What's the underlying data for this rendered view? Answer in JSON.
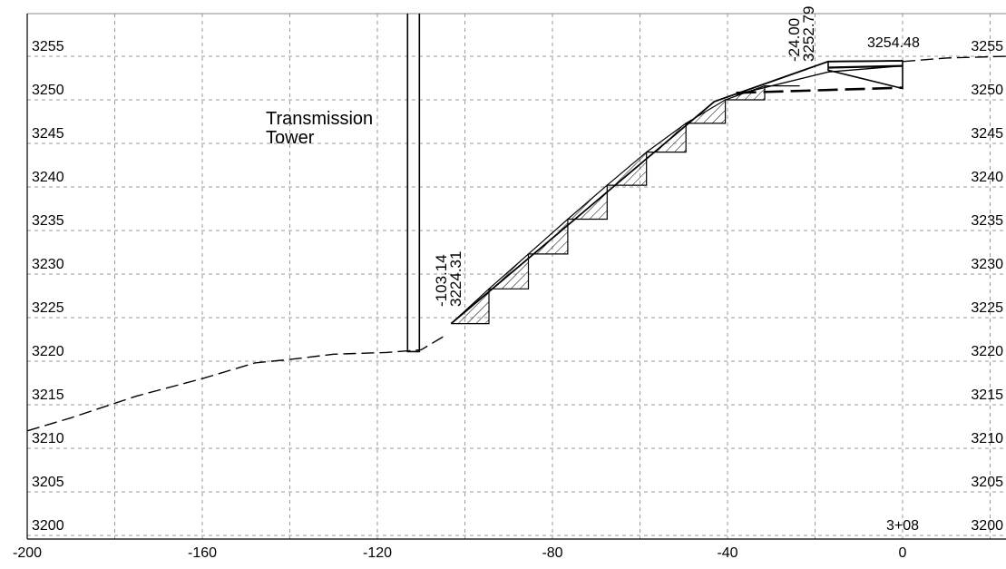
{
  "chart_data": {
    "type": "cross-section",
    "x_range": [
      -200,
      24
    ],
    "y_range": [
      3200,
      3257.5
    ],
    "x_ticks": [
      -200,
      -160,
      -120,
      -80,
      -40,
      0
    ],
    "x_tick_labels": [
      "-200",
      "-160",
      "-120",
      "-80",
      "-40",
      "0"
    ],
    "y_ticks": [
      3200,
      3205,
      3210,
      3215,
      3220,
      3225,
      3230,
      3235,
      3240,
      3245,
      3250,
      3255
    ],
    "y_tick_labels": [
      "3200",
      "3205",
      "3210",
      "3215",
      "3220",
      "3225",
      "3230",
      "3235",
      "3240",
      "3245",
      "3250",
      "3255"
    ],
    "x_grid_lines": [
      -180,
      -160,
      -140,
      -120,
      -100,
      -80,
      -60,
      -40,
      -20,
      0,
      20
    ],
    "grid": true,
    "station_label": "3+08",
    "tower_label": [
      "Transmission",
      "Tower"
    ],
    "annotations": [
      {
        "lines": [
          "-103.14",
          "3224.31"
        ],
        "x": -103.14,
        "y": 3224.31
      },
      {
        "lines": [
          "-24.00",
          "3252.79"
        ],
        "x": -24.0,
        "y": 3252.79
      },
      {
        "lines": [
          "3254.48"
        ],
        "x": 0,
        "y": 3254.48
      }
    ],
    "existing_ground": [
      [
        -200,
        3212.0
      ],
      [
        -190,
        3213.5
      ],
      [
        -175,
        3216.0
      ],
      [
        -160,
        3218.0
      ],
      [
        -148,
        3219.8
      ],
      [
        -140,
        3220.2
      ],
      [
        -130,
        3220.8
      ],
      [
        -118,
        3221.0
      ],
      [
        -110,
        3221.3
      ],
      [
        -105,
        3222.8
      ]
    ],
    "existing_ground_right": [
      [
        0,
        3254.4
      ],
      [
        10,
        3254.8
      ],
      [
        24,
        3255.0
      ]
    ],
    "tower": {
      "x_left": -113.1,
      "x_right": -110.4,
      "y_bottom": 3221.1
    },
    "fill_slope": [
      [
        -103.14,
        3224.31
      ],
      [
        -43.0,
        3249.8
      ],
      [
        -17.0,
        3254.4
      ],
      [
        0,
        3254.48
      ]
    ],
    "road_section": [
      [
        -17.0,
        3254.4
      ],
      [
        0,
        3254.48
      ],
      [
        0,
        3251.3
      ],
      [
        -17.0,
        3253.4
      ],
      [
        -17.0,
        3254.4
      ]
    ],
    "road_inner": [
      [
        -17.0,
        3253.7
      ],
      [
        0,
        3253.9
      ]
    ],
    "lower_slope": [
      [
        -38.0,
        3250.6
      ],
      [
        -17.0,
        3253.2
      ],
      [
        0,
        3253.9
      ]
    ],
    "subgrade": [
      [
        -38.0,
        3250.8
      ],
      [
        0,
        3251.4
      ]
    ],
    "benches": [
      [
        -103.14,
        3224.31
      ],
      [
        -94.5,
        3224.31
      ],
      [
        -94.5,
        3228.3
      ],
      [
        -85.5,
        3228.3
      ],
      [
        -85.5,
        3232.3
      ],
      [
        -76.5,
        3232.3
      ],
      [
        -76.5,
        3236.3
      ],
      [
        -67.5,
        3236.3
      ],
      [
        -67.5,
        3240.2
      ],
      [
        -58.5,
        3240.2
      ],
      [
        -58.5,
        3244.0
      ],
      [
        -49.5,
        3244.0
      ],
      [
        -49.5,
        3247.3
      ],
      [
        -40.5,
        3247.3
      ],
      [
        -40.5,
        3250.0
      ],
      [
        -31.5,
        3250.0
      ],
      [
        -31.5,
        3251.6
      ],
      [
        -23.5,
        3251.6
      ]
    ]
  }
}
